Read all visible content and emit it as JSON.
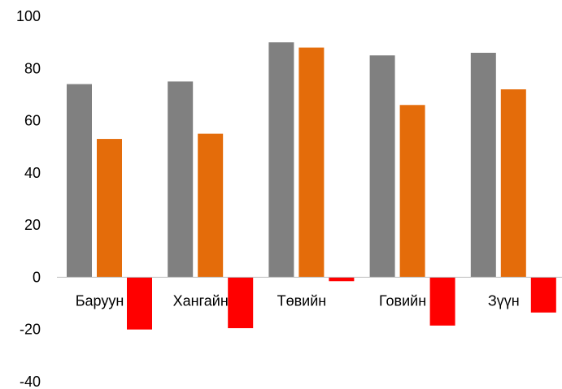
{
  "chart_data": {
    "type": "bar",
    "categories": [
      "Баруун",
      "Хангайн",
      "Төвийн",
      "Говийн",
      "Зүүн"
    ],
    "series": [
      {
        "values": [
          74,
          75,
          90,
          85,
          86
        ],
        "color": "#808080"
      },
      {
        "values": [
          53,
          55,
          88,
          66,
          72
        ],
        "color": "#E46C0A"
      },
      {
        "values": [
          -20,
          -19.5,
          -1.5,
          -18.5,
          -13.5
        ],
        "color": "#FF0000"
      }
    ],
    "title": "",
    "xlabel": "",
    "ylabel": "",
    "ylim": [
      -40,
      100
    ],
    "yticks": [
      100,
      80,
      60,
      40,
      20,
      0,
      -20,
      -40
    ],
    "grid": false,
    "legend": "none"
  }
}
